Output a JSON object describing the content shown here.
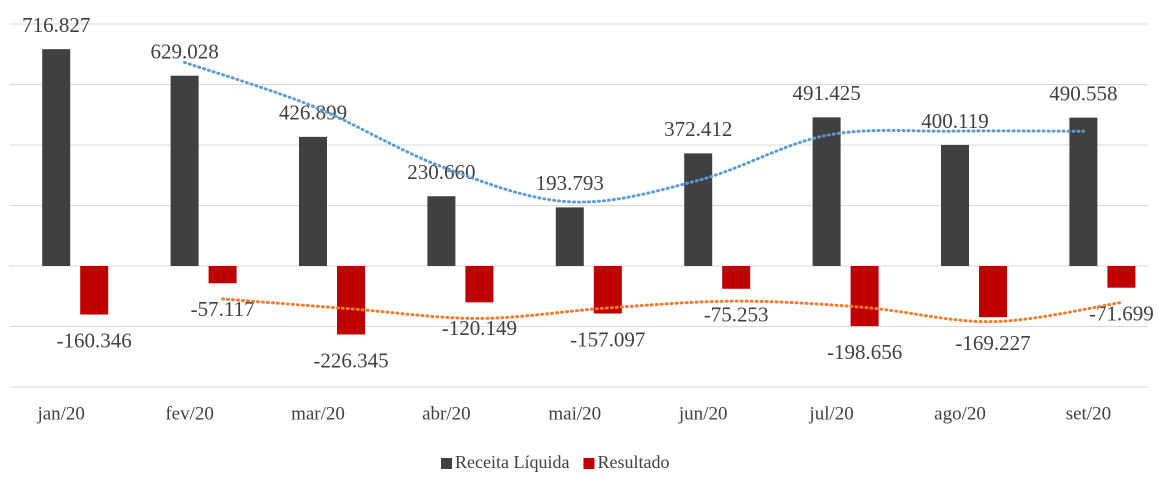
{
  "chart_data": {
    "type": "bar",
    "categories": [
      "jan/20",
      "fev/20",
      "mar/20",
      "abr/20",
      "mai/20",
      "jun/20",
      "jul/20",
      "ago/20",
      "set/20"
    ],
    "series": [
      {
        "name": "Receita Líquida",
        "color": "#404040",
        "trendline_color": "#5b9bd5",
        "values": [
          716.827,
          629.028,
          426.899,
          230.66,
          193.793,
          372.412,
          491.425,
          400.119,
          490.558
        ],
        "value_labels": [
          "716.827",
          "629.028",
          "426.899",
          "230.660",
          "193.793",
          "372.412",
          "491.425",
          "400.119",
          "490.558"
        ]
      },
      {
        "name": "Resultado",
        "color": "#c00000",
        "trendline_color": "#ed7d31",
        "values": [
          -160.346,
          -57.117,
          -226.345,
          -120.149,
          -157.097,
          -75.253,
          -198.656,
          -169.227,
          -71.699
        ],
        "value_labels": [
          "-160.346",
          "-57.117",
          "-226.345",
          "-120.149",
          "-157.097",
          "-75.253",
          "-198.656",
          "-169.227",
          "-71.699"
        ]
      }
    ],
    "trendline": "moving_average",
    "trendline_period": 2,
    "ylim": [
      -400,
      800
    ],
    "yticks": [
      -400,
      -200,
      0,
      200,
      400,
      600,
      800
    ],
    "grid": true,
    "legend": "bottom"
  }
}
